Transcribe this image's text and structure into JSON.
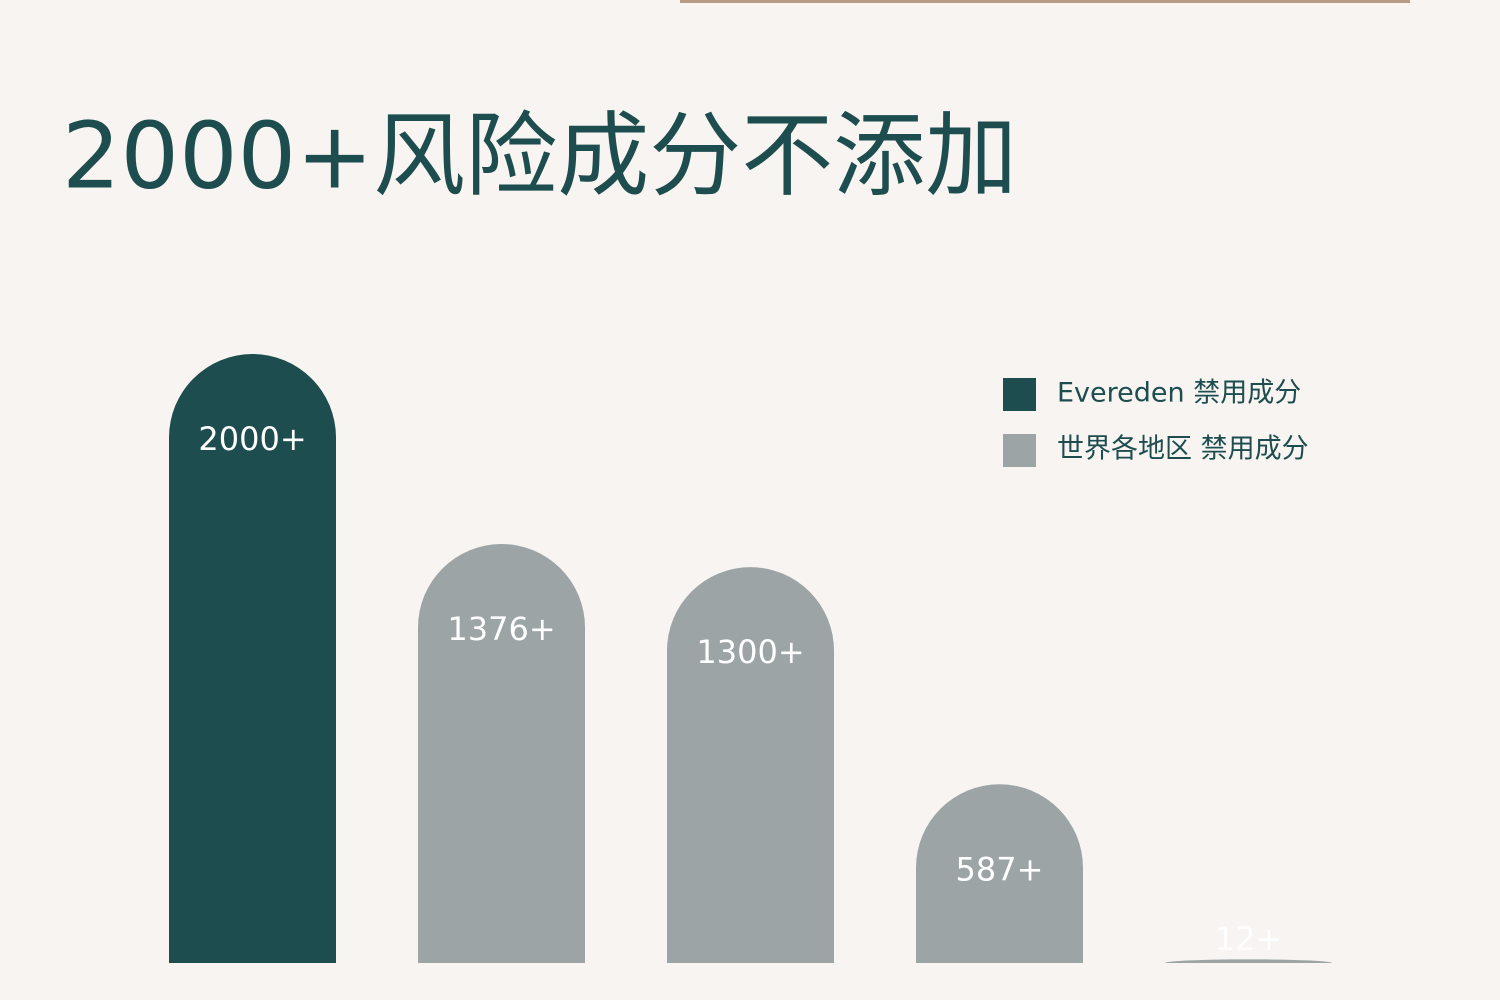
{
  "chart_data": {
    "type": "bar",
    "title": "2000+风险成分不添加",
    "categories": [
      null,
      null,
      null,
      null,
      null
    ],
    "series": [
      {
        "name": "Evereden 禁用成分",
        "color": "#1e4d4f",
        "values": [
          2000,
          null,
          null,
          null,
          null
        ],
        "value_labels": [
          "2000+",
          null,
          null,
          null,
          null
        ]
      },
      {
        "name": "世界各地区 禁用成分",
        "color": "#9ca4a5",
        "values": [
          null,
          1376,
          1300,
          587,
          12
        ],
        "value_labels": [
          null,
          "1376+",
          "1300+",
          "587+",
          "12+"
        ]
      }
    ]
  }
}
